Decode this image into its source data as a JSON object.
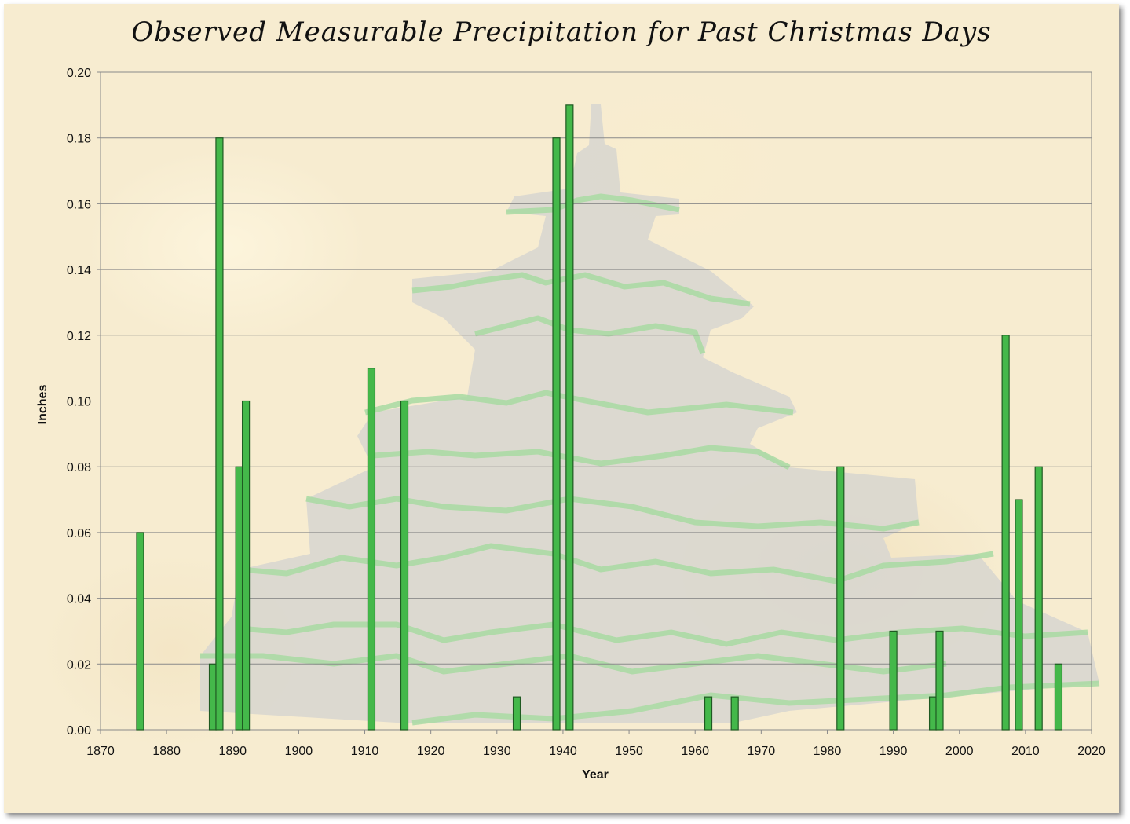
{
  "colors": {
    "bar_fill": "#44b84a",
    "bar_stroke": "#1f5a22",
    "grid": "#8a8a8a",
    "plot_background": "#f7ecd0",
    "tree_body": "#d9d7cf",
    "tree_trim": "#a9dba3"
  },
  "chart_data": {
    "type": "bar",
    "title": "Observed Measurable Precipitation for Past Christmas Days",
    "xlabel": "Year",
    "ylabel": "Inches",
    "xlim": [
      1870,
      2020
    ],
    "ylim": [
      0,
      0.2
    ],
    "x_ticks": [
      1870,
      1880,
      1890,
      1900,
      1910,
      1920,
      1930,
      1940,
      1950,
      1960,
      1970,
      1980,
      1990,
      2000,
      2010,
      2020
    ],
    "y_ticks": [
      "0.00",
      "0.02",
      "0.04",
      "0.06",
      "0.08",
      "0.10",
      "0.12",
      "0.14",
      "0.16",
      "0.18",
      "0.20"
    ],
    "grid": "horizontal",
    "x": [
      1876,
      1887,
      1888,
      1891,
      1892,
      1911,
      1916,
      1933,
      1939,
      1941,
      1962,
      1966,
      1982,
      1990,
      1996,
      1997,
      2007,
      2009,
      2012,
      2015
    ],
    "values": [
      0.06,
      0.02,
      0.18,
      0.08,
      0.1,
      0.11,
      0.1,
      0.01,
      0.18,
      0.19,
      0.01,
      0.01,
      0.08,
      0.03,
      0.01,
      0.03,
      0.12,
      0.07,
      0.08,
      0.02
    ]
  }
}
